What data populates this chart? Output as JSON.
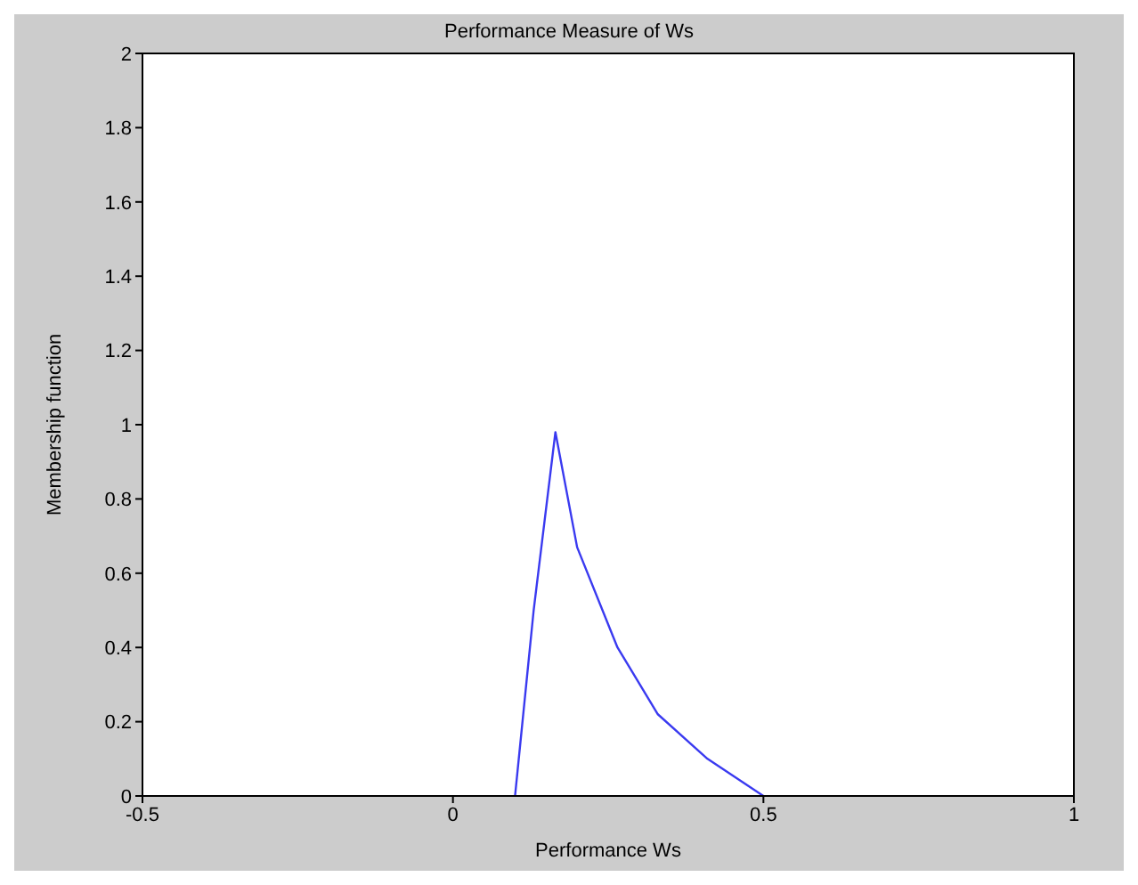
{
  "chart_data": {
    "type": "line",
    "title": "Performance Measure of Ws",
    "xlabel": "Performance Ws",
    "ylabel": "Membership function",
    "x": [
      0.1,
      0.13,
      0.165,
      0.2,
      0.265,
      0.33,
      0.41,
      0.5
    ],
    "series": [
      {
        "color": "#3a3af0",
        "values": [
          0,
          0.5,
          0.98,
          0.67,
          0.4,
          0.22,
          0.1,
          0
        ]
      }
    ],
    "xlim": [
      -0.5,
      1
    ],
    "xticks": [
      -0.5,
      0,
      0.5,
      1
    ],
    "ylim": [
      0,
      2
    ],
    "yticks": [
      0,
      0.2,
      0.4,
      0.6,
      0.8,
      1,
      1.2,
      1.4,
      1.6,
      1.8,
      2
    ],
    "legend": false,
    "marker": "none",
    "line_style": "solid"
  }
}
